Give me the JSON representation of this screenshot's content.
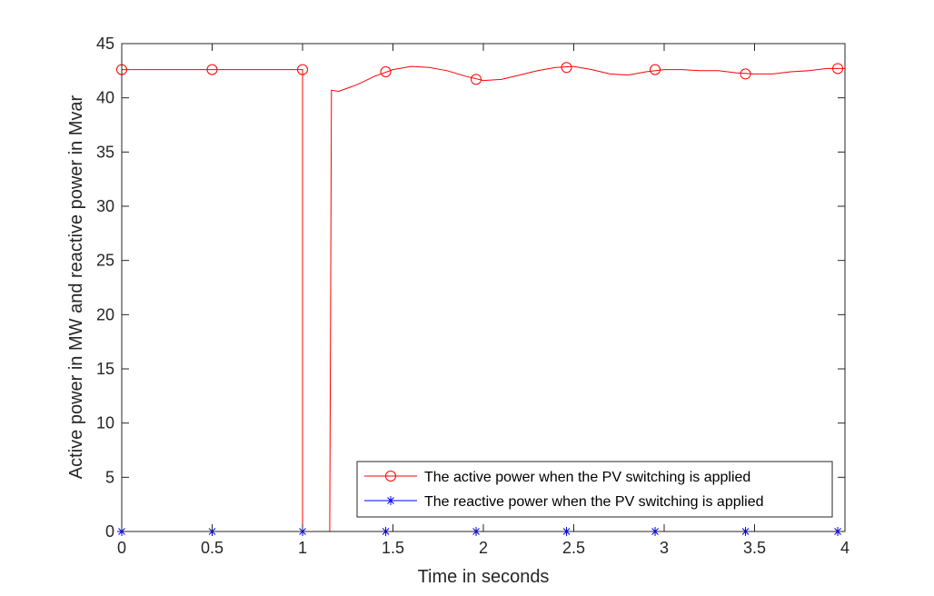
{
  "chart_data": {
    "type": "line",
    "xlabel": "Time in seconds",
    "ylabel": "Active power in MW and reactive power in Mvar",
    "xlim": [
      0,
      4
    ],
    "ylim": [
      0,
      45
    ],
    "xticks": [
      "0",
      "0.5",
      "1",
      "1.5",
      "2",
      "2.5",
      "3",
      "3.5",
      "4"
    ],
    "yticks": [
      "0",
      "5",
      "10",
      "15",
      "20",
      "25",
      "30",
      "35",
      "40",
      "45"
    ],
    "grid": false,
    "legend_position": "bottom-right",
    "series": [
      {
        "name": "The active power when the PV switching is applied",
        "color": "#ff0000",
        "marker": "circle",
        "line": [
          [
            0,
            42.6
          ],
          [
            1.0,
            42.6
          ],
          [
            1.0,
            0
          ],
          [
            1.15,
            0
          ],
          [
            1.16,
            40.7
          ],
          [
            1.2,
            40.6
          ],
          [
            1.3,
            41.2
          ],
          [
            1.4,
            42.0
          ],
          [
            1.5,
            42.6
          ],
          [
            1.6,
            42.9
          ],
          [
            1.7,
            42.8
          ],
          [
            1.8,
            42.5
          ],
          [
            1.9,
            42.0
          ],
          [
            2.0,
            41.6
          ],
          [
            2.1,
            41.7
          ],
          [
            2.2,
            42.1
          ],
          [
            2.3,
            42.5
          ],
          [
            2.4,
            42.8
          ],
          [
            2.5,
            42.9
          ],
          [
            2.6,
            42.6
          ],
          [
            2.7,
            42.2
          ],
          [
            2.8,
            42.1
          ],
          [
            2.9,
            42.4
          ],
          [
            3.0,
            42.6
          ],
          [
            3.1,
            42.6
          ],
          [
            3.2,
            42.5
          ],
          [
            3.3,
            42.5
          ],
          [
            3.4,
            42.3
          ],
          [
            3.5,
            42.2
          ],
          [
            3.6,
            42.2
          ],
          [
            3.7,
            42.4
          ],
          [
            3.8,
            42.5
          ],
          [
            3.9,
            42.7
          ],
          [
            4.0,
            42.7
          ]
        ],
        "markers": [
          [
            0,
            42.6
          ],
          [
            0.5,
            42.6
          ],
          [
            1.0,
            42.6
          ],
          [
            1.46,
            42.4
          ],
          [
            1.96,
            41.7
          ],
          [
            2.46,
            42.8
          ],
          [
            2.95,
            42.6
          ],
          [
            3.45,
            42.2
          ],
          [
            3.96,
            42.7
          ]
        ]
      },
      {
        "name": "The reactive power when the PV switching is applied",
        "color": "#0000ff",
        "marker": "asterisk",
        "line": [
          [
            0,
            0
          ],
          [
            4.0,
            0
          ]
        ],
        "markers": [
          [
            0,
            0
          ],
          [
            0.5,
            0
          ],
          [
            1.0,
            0
          ],
          [
            1.46,
            0
          ],
          [
            1.96,
            0
          ],
          [
            2.46,
            0
          ],
          [
            2.95,
            0
          ],
          [
            3.45,
            0
          ],
          [
            3.96,
            0
          ]
        ]
      }
    ]
  }
}
